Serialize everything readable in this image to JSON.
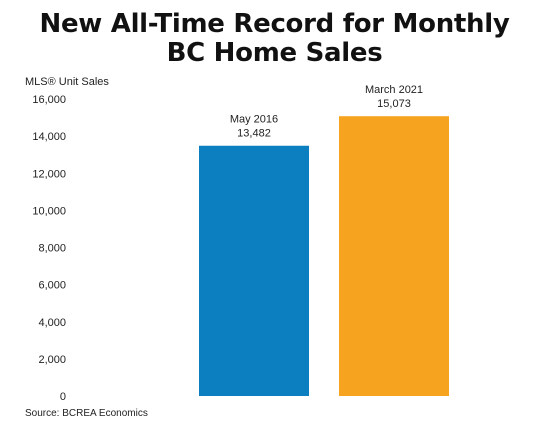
{
  "title_lines": [
    "New All-Time Record for Monthly",
    "BC Home Sales"
  ],
  "source": "Source: BCREA Economics",
  "chart_data": {
    "type": "bar",
    "title": "New All-Time Record for Monthly BC Home Sales",
    "ylabel": "MLS® Unit Sales",
    "xlabel": "",
    "ylim": [
      0,
      16000
    ],
    "yticks": [
      0,
      2000,
      4000,
      6000,
      8000,
      10000,
      12000,
      14000,
      16000
    ],
    "ytick_labels": [
      "0",
      "2,000",
      "4,000",
      "6,000",
      "8,000",
      "10,000",
      "12,000",
      "14,000",
      "16,000"
    ],
    "grid": false,
    "categories": [
      "May 2016",
      "March 2021"
    ],
    "values": [
      13482,
      15073
    ],
    "value_labels": [
      "13,482",
      "15,073"
    ],
    "colors": [
      "#0c7fc0",
      "#f6a41f"
    ]
  }
}
